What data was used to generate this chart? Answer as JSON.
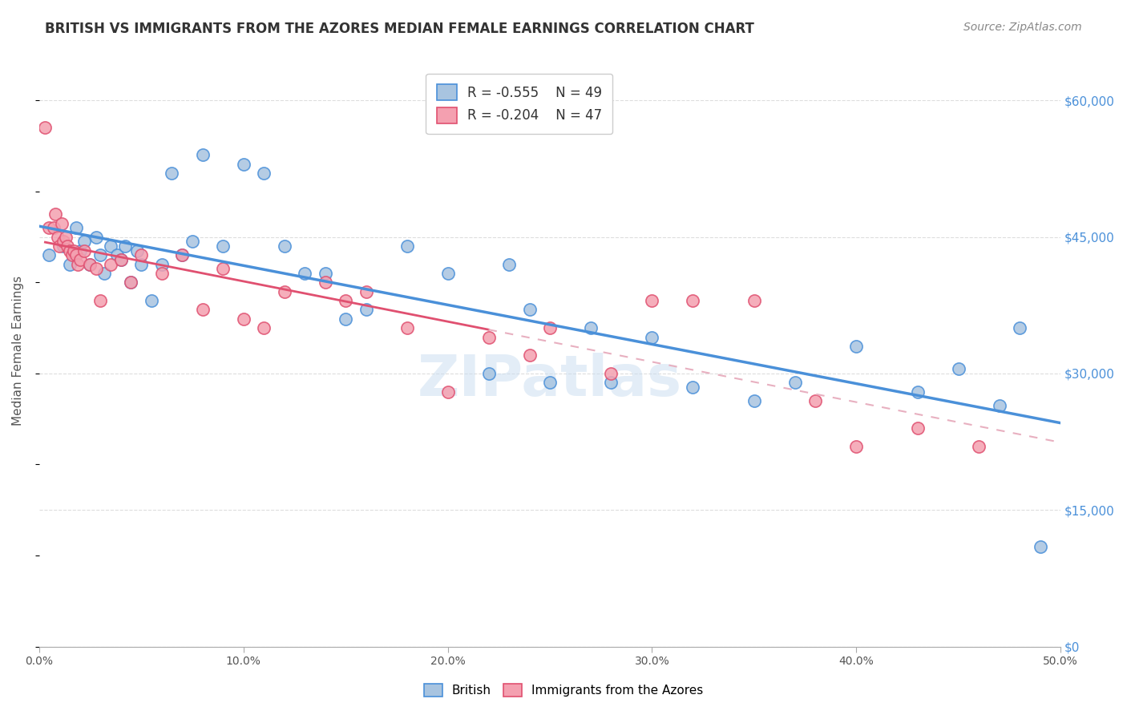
{
  "title": "BRITISH VS IMMIGRANTS FROM THE AZORES MEDIAN FEMALE EARNINGS CORRELATION CHART",
  "source": "Source: ZipAtlas.com",
  "ylabel": "Median Female Earnings",
  "x_min": 0.0,
  "x_max": 0.5,
  "y_min": 0,
  "y_max": 65000,
  "yticks": [
    0,
    15000,
    30000,
    45000,
    60000
  ],
  "xticks": [
    0.0,
    0.1,
    0.2,
    0.3,
    0.4,
    0.5
  ],
  "xtick_labels": [
    "0.0%",
    "10.0%",
    "20.0%",
    "30.0%",
    "40.0%",
    "50.0%"
  ],
  "british_color": "#a8c4e0",
  "british_line_color": "#4a90d9",
  "azores_color": "#f4a0b0",
  "azores_line_color": "#e05070",
  "azores_dash_line_color": "#e8b0c0",
  "legend_R_british": "R = -0.555",
  "legend_N_british": "N = 49",
  "legend_R_azores": "R = -0.204",
  "legend_N_azores": "N = 47",
  "background_color": "#ffffff",
  "grid_color": "#dddddd",
  "watermark": "ZIPatlas",
  "british_x": [
    0.005,
    0.012,
    0.015,
    0.018,
    0.02,
    0.022,
    0.025,
    0.028,
    0.03,
    0.032,
    0.035,
    0.038,
    0.04,
    0.042,
    0.045,
    0.048,
    0.05,
    0.055,
    0.06,
    0.065,
    0.07,
    0.075,
    0.08,
    0.09,
    0.1,
    0.11,
    0.12,
    0.13,
    0.14,
    0.15,
    0.16,
    0.18,
    0.2,
    0.22,
    0.23,
    0.24,
    0.25,
    0.27,
    0.28,
    0.3,
    0.32,
    0.35,
    0.37,
    0.4,
    0.43,
    0.45,
    0.47,
    0.48,
    0.49
  ],
  "british_y": [
    43000,
    44000,
    42000,
    46000,
    43500,
    44500,
    42000,
    45000,
    43000,
    41000,
    44000,
    43000,
    42500,
    44000,
    40000,
    43500,
    42000,
    38000,
    42000,
    52000,
    43000,
    44500,
    54000,
    44000,
    53000,
    52000,
    44000,
    41000,
    41000,
    36000,
    37000,
    44000,
    41000,
    30000,
    42000,
    37000,
    29000,
    35000,
    29000,
    34000,
    28500,
    27000,
    29000,
    33000,
    28000,
    30500,
    26500,
    35000,
    11000
  ],
  "azores_x": [
    0.003,
    0.005,
    0.007,
    0.008,
    0.009,
    0.01,
    0.011,
    0.012,
    0.013,
    0.014,
    0.015,
    0.016,
    0.017,
    0.018,
    0.019,
    0.02,
    0.022,
    0.025,
    0.028,
    0.03,
    0.035,
    0.04,
    0.045,
    0.05,
    0.06,
    0.07,
    0.08,
    0.09,
    0.1,
    0.11,
    0.12,
    0.14,
    0.15,
    0.16,
    0.18,
    0.2,
    0.22,
    0.24,
    0.25,
    0.28,
    0.3,
    0.32,
    0.35,
    0.38,
    0.4,
    0.43,
    0.46
  ],
  "azores_y": [
    57000,
    46000,
    46000,
    47500,
    45000,
    44000,
    46500,
    44500,
    45000,
    44000,
    43500,
    43000,
    43500,
    43000,
    42000,
    42500,
    43500,
    42000,
    41500,
    38000,
    42000,
    42500,
    40000,
    43000,
    41000,
    43000,
    37000,
    41500,
    36000,
    35000,
    39000,
    40000,
    38000,
    39000,
    35000,
    28000,
    34000,
    32000,
    35000,
    30000,
    38000,
    38000,
    38000,
    27000,
    22000,
    24000,
    22000
  ]
}
